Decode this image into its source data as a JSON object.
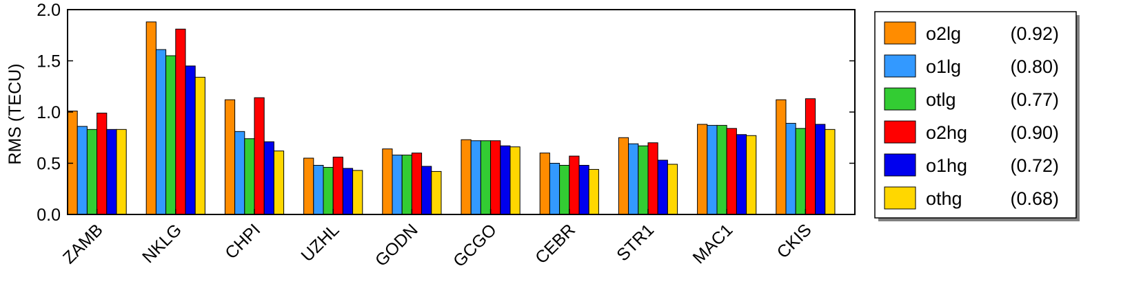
{
  "chart_data": {
    "type": "bar",
    "title": "",
    "xlabel": "",
    "ylabel": "RMS (TECU)",
    "ylim": [
      0,
      2.0
    ],
    "yticks": [
      "0.0",
      "0.5",
      "1.0",
      "1.5",
      "2.0"
    ],
    "grid": false,
    "legend_position": "right, outside plot",
    "categories": [
      "ZAMB",
      "NKLG",
      "CHPI",
      "UZHL",
      "GODN",
      "GCGO",
      "CEBR",
      "STR1",
      "MAC1",
      "CKIS"
    ],
    "series": [
      {
        "name": "o2lg",
        "value_label": "(0.92)",
        "color": "#ff8c00",
        "values": [
          1.01,
          1.88,
          1.12,
          0.55,
          0.64,
          0.73,
          0.6,
          0.75,
          0.88,
          1.12
        ]
      },
      {
        "name": "o1lg",
        "value_label": "(0.80)",
        "color": "#3399ff",
        "values": [
          0.86,
          1.61,
          0.81,
          0.48,
          0.58,
          0.72,
          0.5,
          0.69,
          0.87,
          0.89
        ]
      },
      {
        "name": "otlg",
        "value_label": "(0.77)",
        "color": "#33cc33",
        "values": [
          0.83,
          1.55,
          0.74,
          0.46,
          0.58,
          0.72,
          0.48,
          0.67,
          0.87,
          0.84
        ]
      },
      {
        "name": "o2hg",
        "value_label": "(0.90)",
        "color": "#ff0000",
        "values": [
          0.99,
          1.81,
          1.14,
          0.56,
          0.6,
          0.72,
          0.57,
          0.7,
          0.84,
          1.13
        ]
      },
      {
        "name": "o1hg",
        "value_label": "(0.72)",
        "color": "#0000ee",
        "values": [
          0.83,
          1.45,
          0.71,
          0.45,
          0.47,
          0.67,
          0.48,
          0.53,
          0.78,
          0.88
        ]
      },
      {
        "name": "othg",
        "value_label": "(0.68)",
        "color": "#ffd700",
        "values": [
          0.83,
          1.34,
          0.62,
          0.43,
          0.42,
          0.66,
          0.44,
          0.49,
          0.77,
          0.83
        ]
      }
    ]
  }
}
